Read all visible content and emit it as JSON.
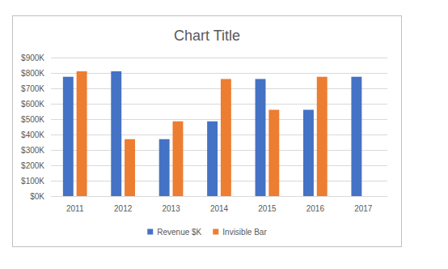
{
  "chart_data": {
    "type": "bar",
    "title": "Chart Title",
    "categories": [
      "2011",
      "2012",
      "2013",
      "2014",
      "2015",
      "2016",
      "2017"
    ],
    "series": [
      {
        "name": "Revenue $K",
        "color": "#4472c4",
        "values": [
          775,
          810,
          370,
          485,
          760,
          560,
          775
        ]
      },
      {
        "name": "Invisible Bar",
        "color": "#ed7d31",
        "values": [
          810,
          370,
          485,
          760,
          560,
          775,
          null
        ]
      }
    ],
    "ylim": [
      0,
      900
    ],
    "yticks": [
      {
        "value": 0,
        "label": "$0K"
      },
      {
        "value": 100,
        "label": "$100K"
      },
      {
        "value": 200,
        "label": "$200K"
      },
      {
        "value": 300,
        "label": "$300K"
      },
      {
        "value": 400,
        "label": "$400K"
      },
      {
        "value": 500,
        "label": "$500K"
      },
      {
        "value": 600,
        "label": "$600K"
      },
      {
        "value": 700,
        "label": "$700K"
      },
      {
        "value": 800,
        "label": "$800K"
      },
      {
        "value": 900,
        "label": "$900K"
      }
    ],
    "grid": true,
    "legend": "bottom"
  }
}
